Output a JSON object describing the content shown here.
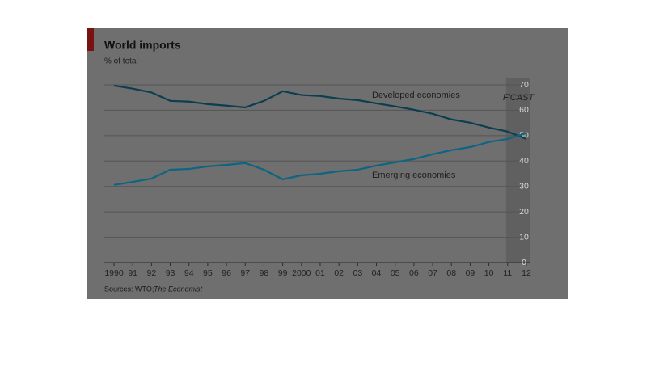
{
  "chart_data": {
    "type": "line",
    "title": "World imports",
    "subtitle": "% of total",
    "source": "Sources: WTO;",
    "source_publisher": "The Economist",
    "categories": [
      "1990",
      "91",
      "92",
      "93",
      "94",
      "95",
      "96",
      "97",
      "98",
      "99",
      "2000",
      "01",
      "02",
      "03",
      "04",
      "05",
      "06",
      "07",
      "08",
      "09",
      "10",
      "11",
      "12"
    ],
    "series": [
      {
        "name": "Developed economies",
        "color": "#0c3e52",
        "values": [
          69.7,
          68.5,
          67,
          63.7,
          63.4,
          62.4,
          61.8,
          61.1,
          63.7,
          67.5,
          66,
          65.6,
          64.6,
          64,
          62.7,
          61.5,
          60.2,
          58.6,
          56.4,
          55.1,
          53.2,
          51.6,
          48.7
        ]
      },
      {
        "name": "Emerging economies",
        "color": "#0e6583",
        "values": [
          30.6,
          31.8,
          33.1,
          36.6,
          36.9,
          37.9,
          38.5,
          39.2,
          36.6,
          32.8,
          34.4,
          35,
          36,
          36.6,
          38.2,
          39.5,
          40.8,
          42.7,
          44.3,
          45.5,
          47.5,
          48.7,
          51
        ]
      }
    ],
    "forecast_label": "F'CAST",
    "forecast_from": "11",
    "ylim": [
      0,
      70
    ],
    "yticks": [
      0,
      10,
      20,
      30,
      40,
      50,
      60,
      70
    ],
    "grid": true
  }
}
